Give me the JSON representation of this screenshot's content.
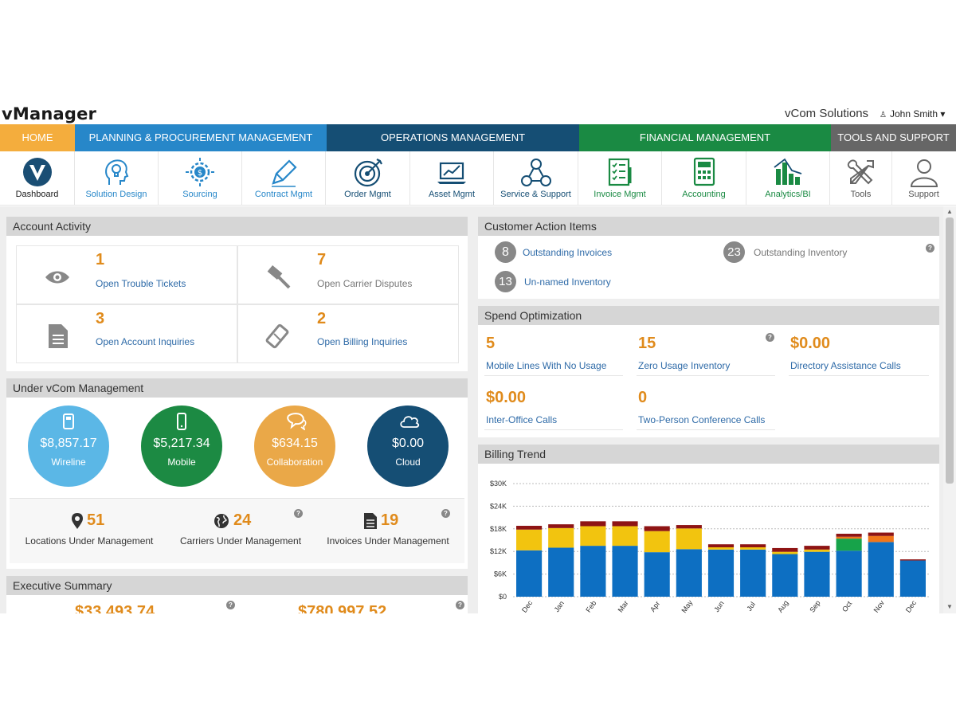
{
  "app": {
    "title": "vManager",
    "company": "vCom Solutions",
    "user": "John Smith ▾"
  },
  "nav": [
    {
      "label": "HOME",
      "color": "#f4ad3d"
    },
    {
      "label": "PLANNING & PROCUREMENT MANAGEMENT",
      "color": "#2787c9"
    },
    {
      "label": "OPERATIONS MANAGEMENT",
      "color": "#154e74"
    },
    {
      "label": "FINANCIAL MANAGEMENT",
      "color": "#1a8a43"
    },
    {
      "label": "TOOLS AND SUPPORT",
      "color": "#666666"
    }
  ],
  "modules": [
    {
      "label": "Dashboard",
      "icon": "vcom-logo-icon"
    },
    {
      "label": "Solution Design",
      "icon": "lightbulb-head-icon"
    },
    {
      "label": "Sourcing",
      "icon": "dollar-gear-icon"
    },
    {
      "label": "Contract Mgmt",
      "icon": "pen-icon"
    },
    {
      "label": "Order Mgmt",
      "icon": "target-icon"
    },
    {
      "label": "Asset Mgmt",
      "icon": "laptop-chart-icon"
    },
    {
      "label": "Service & Support",
      "icon": "network-people-icon"
    },
    {
      "label": "Invoice Mgmt",
      "icon": "invoice-checklist-icon"
    },
    {
      "label": "Accounting",
      "icon": "calculator-icon"
    },
    {
      "label": "Analytics/BI",
      "icon": "bar-chart-icon"
    },
    {
      "label": "Tools",
      "icon": "tools-icon"
    },
    {
      "label": "Support",
      "icon": "person-icon"
    }
  ],
  "account_activity": {
    "title": "Account Activity",
    "items": [
      {
        "value": "1",
        "label": "Open Trouble Tickets",
        "icon": "eye-icon"
      },
      {
        "value": "7",
        "label": "Open Carrier Disputes",
        "icon": "gavel-icon"
      },
      {
        "value": "3",
        "label": "Open Account Inquiries",
        "icon": "document-icon"
      },
      {
        "value": "2",
        "label": "Open Billing Inquiries",
        "icon": "ticket-icon"
      }
    ]
  },
  "under_management": {
    "title": "Under vCom Management",
    "circles": [
      {
        "amount": "$8,857.17",
        "label": "Wireline",
        "color": "#5bb7e6",
        "icon": "phone-desk-icon"
      },
      {
        "amount": "$5,217.34",
        "label": "Mobile",
        "color": "#1c8a43",
        "icon": "mobile-icon"
      },
      {
        "amount": "$634.15",
        "label": "Collaboration",
        "color": "#eaa848",
        "icon": "chat-icon"
      },
      {
        "amount": "$0.00",
        "label": "Cloud",
        "color": "#154e74",
        "icon": "cloud-icon"
      }
    ],
    "stats": [
      {
        "value": "51",
        "label": "Locations Under Management",
        "icon": "map-pin-icon"
      },
      {
        "value": "24",
        "label": "Carriers Under Management",
        "icon": "globe-icon"
      },
      {
        "value": "19",
        "label": "Invoices Under Management",
        "icon": "file-icon"
      }
    ]
  },
  "executive_summary": {
    "title": "Executive Summary",
    "values": [
      "$33,493.74",
      "$780,997.52"
    ]
  },
  "customer_action": {
    "title": "Customer Action Items",
    "items": [
      {
        "count": "8",
        "label": "Outstanding Invoices"
      },
      {
        "count": "23",
        "label": "Outstanding Inventory"
      },
      {
        "count": "13",
        "label": "Un-named Inventory"
      }
    ]
  },
  "spend_optimization": {
    "title": "Spend Optimization",
    "items": [
      {
        "value": "5",
        "label": "Mobile Lines With No Usage"
      },
      {
        "value": "15",
        "label": "Zero Usage Inventory"
      },
      {
        "value": "$0.00",
        "label": "Directory Assistance Calls"
      },
      {
        "value": "$0.00",
        "label": "Inter-Office Calls"
      },
      {
        "value": "0",
        "label": "Two-Person Conference Calls"
      }
    ]
  },
  "billing_trend": {
    "title": "Billing Trend"
  },
  "chart_data": {
    "type": "bar",
    "stacked": true,
    "categories": [
      "Dec",
      "Jan",
      "Feb",
      "Mar",
      "Apr",
      "May",
      "Jun",
      "Jul",
      "Aug",
      "Sep",
      "Oct",
      "Nov",
      "Dec"
    ],
    "yticks": [
      "$0",
      "$6K",
      "$12K",
      "$18K",
      "$24K",
      "$30K"
    ],
    "ylim": [
      0,
      30000
    ],
    "grid": true,
    "series": [
      {
        "color": "#0d6fc2",
        "values": [
          12300,
          13000,
          13500,
          13500,
          11800,
          12600,
          12500,
          12500,
          11300,
          11900,
          12200,
          14500,
          9600
        ]
      },
      {
        "color": "#17a34a",
        "values": [
          0,
          0,
          0,
          0,
          0,
          0,
          0,
          0,
          0,
          0,
          3200,
          0,
          0
        ]
      },
      {
        "color": "#f2c40f",
        "values": [
          5500,
          5200,
          5200,
          5200,
          5600,
          5500,
          600,
          600,
          600,
          600,
          0,
          0,
          0
        ]
      },
      {
        "color": "#f0761b",
        "values": [
          0,
          0,
          0,
          0,
          0,
          0,
          0,
          0,
          0,
          0,
          500,
          1600,
          0
        ]
      },
      {
        "color": "#8e1414",
        "values": [
          1000,
          1000,
          1300,
          1300,
          1300,
          900,
          800,
          800,
          1000,
          1000,
          800,
          900,
          300
        ]
      }
    ]
  }
}
